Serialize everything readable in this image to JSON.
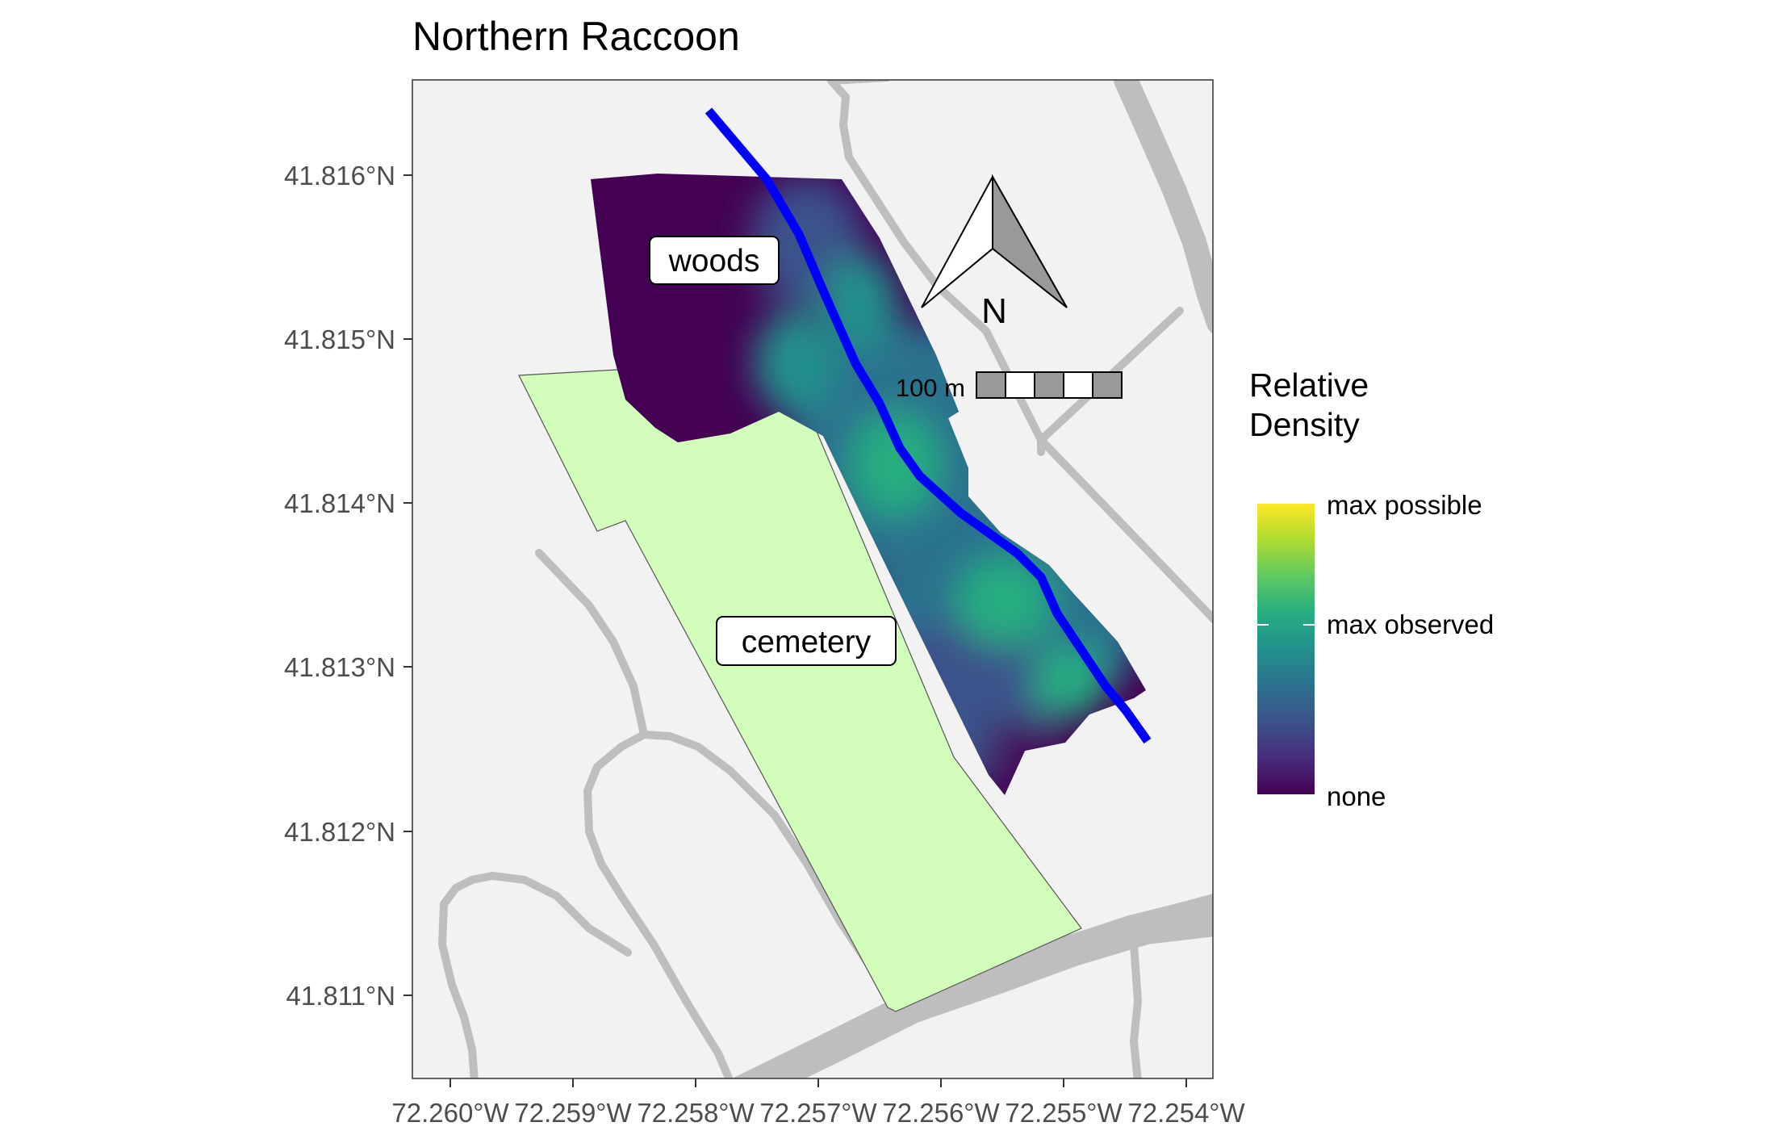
{
  "title": "Northern Raccoon",
  "labels": {
    "woods": "woods",
    "cemetery": "cemetery"
  },
  "north_arrow": {
    "letter": "N"
  },
  "scale_bar": {
    "label": "100 m"
  },
  "legend": {
    "title_line1": "Relative",
    "title_line2": "Density",
    "labels": {
      "max_possible": "max possible",
      "max_observed": "max observed",
      "none": "none"
    },
    "colors": [
      "#440154",
      "#3b528b",
      "#21918c",
      "#5ec962",
      "#fde725"
    ]
  },
  "axes": {
    "y_ticks": [
      "41.816°N",
      "41.815°N",
      "41.814°N",
      "41.813°N",
      "41.812°N",
      "41.811°N"
    ],
    "x_ticks": [
      "72.260°W",
      "72.259°W",
      "72.258°W",
      "72.257°W",
      "72.256°W",
      "72.255°W",
      "72.254°W"
    ]
  },
  "colors": {
    "panel_background": "#f2f2f2",
    "cemetery_fill": "#d2fdbb",
    "road": "#bebebe",
    "trail": "#0000ff"
  }
}
